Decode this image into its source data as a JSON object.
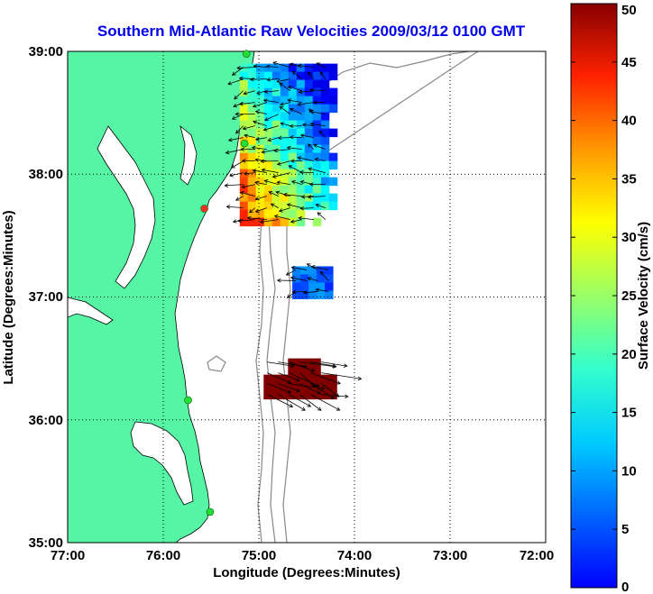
{
  "chart_data": {
    "type": "heatmap",
    "title": "Southern Mid-Atlantic Raw Velocities 2009/03/12 0100 GMT",
    "xlabel": "Longitude (Degrees:Minutes)",
    "ylabel": "Latitude (Degrees:Minutes)",
    "colorbar_label": "Surface Velocity (cm/s)",
    "x_ticks": [
      "77:00",
      "76:00",
      "75:00",
      "74:00",
      "73:00",
      "72:00"
    ],
    "y_ticks": [
      "35:00",
      "36:00",
      "37:00",
      "38:00",
      "39:00"
    ],
    "xlim": [
      -77,
      -72
    ],
    "ylim": [
      35,
      39
    ],
    "colorbar_ticks": [
      0,
      5,
      10,
      15,
      20,
      25,
      30,
      35,
      40,
      45,
      50
    ],
    "colorbar_range": [
      0,
      50
    ],
    "grid": true,
    "colormap": "jet",
    "land_color": "#55f5a5",
    "stations": [
      {
        "lon": -75.13,
        "lat": 38.98,
        "color": "#22dd33"
      },
      {
        "lon": -75.15,
        "lat": 38.25,
        "color": "#22dd33"
      },
      {
        "lon": -75.57,
        "lat": 37.72,
        "color": "#ee3322"
      },
      {
        "lon": -75.74,
        "lat": 36.16,
        "color": "#22dd33"
      },
      {
        "lon": -75.51,
        "lat": 35.25,
        "color": "#22dd33"
      }
    ],
    "velocity_fields": [
      {
        "region": "north",
        "lon_range": [
          -75.2,
          -74.2
        ],
        "lat_range": [
          37.6,
          38.9
        ],
        "speed_range": [
          5,
          42
        ]
      },
      {
        "region": "middle",
        "lon_range": [
          -74.65,
          -74.25
        ],
        "lat_range": [
          37.0,
          37.25
        ],
        "speed_range": [
          8,
          14
        ]
      },
      {
        "region": "south",
        "lon_range": [
          -74.95,
          -74.25
        ],
        "lat_range": [
          36.2,
          36.5
        ],
        "speed_range": [
          50,
          50
        ]
      }
    ]
  }
}
